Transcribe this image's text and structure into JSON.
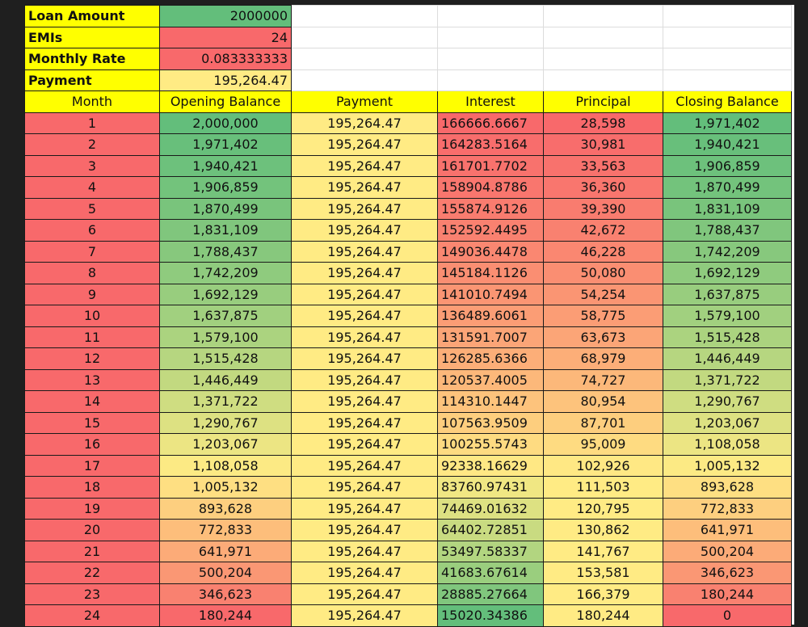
{
  "inputs": {
    "loan_amount": {
      "label": "Loan Amount",
      "value": "2000000"
    },
    "emis": {
      "label": "EMIs",
      "value": "24"
    },
    "monthly_rate": {
      "label": "Monthly Rate",
      "value": "0.083333333"
    },
    "payment": {
      "label": "Payment",
      "value": "195,264.47"
    }
  },
  "columns": [
    "Month",
    "Opening Balance",
    "Payment",
    "Interest",
    "Principal",
    "Closing Balance"
  ],
  "rows": [
    [
      "1",
      "2,000,000",
      "195,264.47",
      "166666.6667",
      "28,598",
      "1,971,402"
    ],
    [
      "2",
      "1,971,402",
      "195,264.47",
      "164283.5164",
      "30,981",
      "1,940,421"
    ],
    [
      "3",
      "1,940,421",
      "195,264.47",
      "161701.7702",
      "33,563",
      "1,906,859"
    ],
    [
      "4",
      "1,906,859",
      "195,264.47",
      "158904.8786",
      "36,360",
      "1,870,499"
    ],
    [
      "5",
      "1,870,499",
      "195,264.47",
      "155874.9126",
      "39,390",
      "1,831,109"
    ],
    [
      "6",
      "1,831,109",
      "195,264.47",
      "152592.4495",
      "42,672",
      "1,788,437"
    ],
    [
      "7",
      "1,788,437",
      "195,264.47",
      "149036.4478",
      "46,228",
      "1,742,209"
    ],
    [
      "8",
      "1,742,209",
      "195,264.47",
      "145184.1126",
      "50,080",
      "1,692,129"
    ],
    [
      "9",
      "1,692,129",
      "195,264.47",
      "141010.7494",
      "54,254",
      "1,637,875"
    ],
    [
      "10",
      "1,637,875",
      "195,264.47",
      "136489.6061",
      "58,775",
      "1,579,100"
    ],
    [
      "11",
      "1,579,100",
      "195,264.47",
      "131591.7007",
      "63,673",
      "1,515,428"
    ],
    [
      "12",
      "1,515,428",
      "195,264.47",
      "126285.6366",
      "68,979",
      "1,446,449"
    ],
    [
      "13",
      "1,446,449",
      "195,264.47",
      "120537.4005",
      "74,727",
      "1,371,722"
    ],
    [
      "14",
      "1,371,722",
      "195,264.47",
      "114310.1447",
      "80,954",
      "1,290,767"
    ],
    [
      "15",
      "1,290,767",
      "195,264.47",
      "107563.9509",
      "87,701",
      "1,203,067"
    ],
    [
      "16",
      "1,203,067",
      "195,264.47",
      "100255.5743",
      "95,009",
      "1,108,058"
    ],
    [
      "17",
      "1,108,058",
      "195,264.47",
      "92338.16629",
      "102,926",
      "1,005,132"
    ],
    [
      "18",
      "1,005,132",
      "195,264.47",
      "83760.97431",
      "111,503",
      "893,628"
    ],
    [
      "19",
      "893,628",
      "195,264.47",
      "74469.01632",
      "120,795",
      "772,833"
    ],
    [
      "20",
      "772,833",
      "195,264.47",
      "64402.72851",
      "130,862",
      "641,971"
    ],
    [
      "21",
      "641,971",
      "195,264.47",
      "53497.58337",
      "141,767",
      "500,204"
    ],
    [
      "22",
      "500,204",
      "195,264.47",
      "41683.67614",
      "153,581",
      "346,623"
    ],
    [
      "23",
      "346,623",
      "195,264.47",
      "28885.27664",
      "166,379",
      "180,244"
    ],
    [
      "24",
      "180,244",
      "195,264.47",
      "15020.34386",
      "180,244",
      "0"
    ]
  ],
  "colors": {
    "header_yellow": "#ffff00",
    "scale_red": "#f8696b",
    "scale_yellow": "#ffeb84",
    "scale_green": "#63be7b"
  }
}
